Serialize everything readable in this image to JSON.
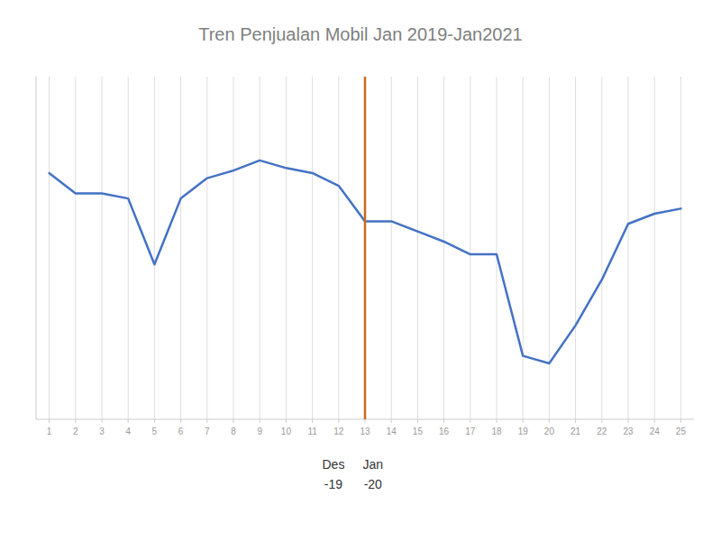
{
  "chart_data": {
    "type": "line",
    "title": "Tren Penjualan  Mobil Jan 2019-Jan2021",
    "categories": [
      "1",
      "2",
      "3",
      "4",
      "5",
      "6",
      "7",
      "8",
      "9",
      "10",
      "11",
      "12",
      "13",
      "14",
      "15",
      "16",
      "17",
      "18",
      "19",
      "20",
      "21",
      "22",
      "23",
      "24",
      "25"
    ],
    "values": [
      92,
      84,
      84,
      82,
      56,
      82,
      90,
      93,
      97,
      94,
      92,
      87,
      73,
      73,
      69,
      65,
      60,
      60,
      20,
      17,
      32,
      50,
      72,
      76,
      78
    ],
    "color": "#4472C4",
    "ylim": [
      -5,
      130
    ],
    "grid": true,
    "tick_labels": "x",
    "vline": {
      "category": "13",
      "color": "#C96A1A"
    },
    "annotations": [
      {
        "text": "Des",
        "category": "12"
      },
      {
        "text": "-19",
        "category": "12"
      },
      {
        "text": "Jan",
        "category": "13"
      },
      {
        "text": "-20",
        "category": "13"
      }
    ]
  }
}
